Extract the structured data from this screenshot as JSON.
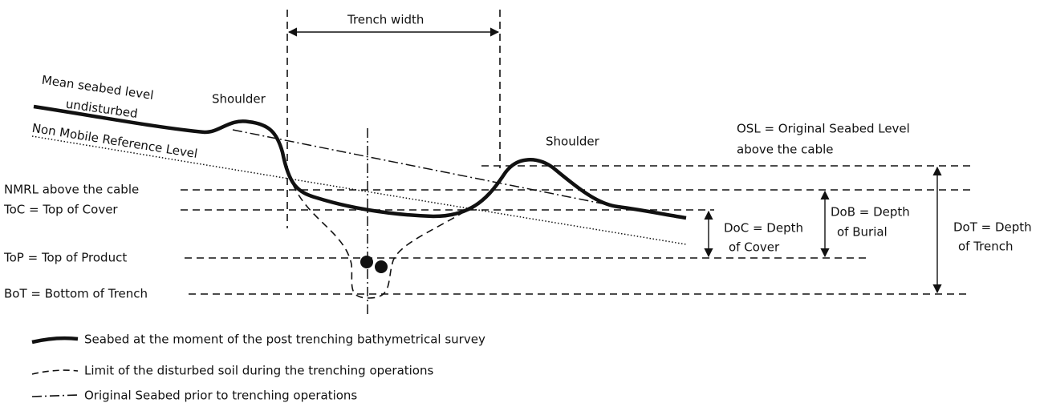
{
  "labels": {
    "trench_width": "Trench width",
    "mean_seabed_1": "Mean seabed level",
    "mean_seabed_2": "undisturbed",
    "shoulder_left": "Shoulder",
    "nmrl_curve": "Non Mobile Reference Level",
    "shoulder_right": "Shoulder",
    "osl_1": "OSL = Original Seabed Level",
    "osl_2": "above the cable",
    "nmrl": "NMRL above the cable",
    "toc": "ToC = Top of Cover",
    "top": "ToP = Top of Product",
    "bot": "BoT = Bottom of Trench",
    "doc_1": "DoC = Depth",
    "doc_2": "of Cover",
    "dob_1": "DoB = Depth",
    "dob_2": "of Burial",
    "dot_1": "DoT = Depth",
    "dot_2": "of Trench"
  },
  "legend": [
    "Seabed at the moment of the post trenching bathymetrical survey",
    "Limit of the disturbed soil during the trenching operations",
    "Original Seabed prior to trenching operations"
  ]
}
